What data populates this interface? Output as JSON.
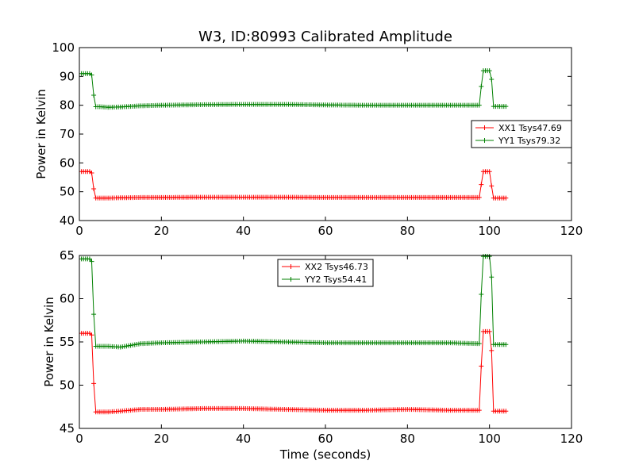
{
  "chart_data": [
    {
      "type": "line",
      "title": "W3, ID:80993 Calibrated Amplitude",
      "xlabel": "",
      "ylabel": "Power in Kelvin",
      "xlim": [
        0,
        120
      ],
      "ylim": [
        40,
        100
      ],
      "xticks": [
        0,
        20,
        40,
        60,
        80,
        100,
        120
      ],
      "yticks": [
        40,
        50,
        60,
        70,
        80,
        90,
        100
      ],
      "legend": "right",
      "series": [
        {
          "name": "XX1 Tsys47.69",
          "color": "#ff0000",
          "x": [
            0.5,
            1,
            1.5,
            2,
            2.5,
            3,
            3.5,
            4,
            5,
            7,
            10,
            15,
            20,
            30,
            40,
            50,
            60,
            70,
            80,
            90,
            97.5,
            98,
            98.5,
            99,
            99.5,
            100,
            100.5,
            101,
            102,
            103,
            104
          ],
          "y": [
            57,
            57,
            57,
            57,
            57,
            56.5,
            51,
            47.8,
            47.8,
            47.8,
            47.9,
            48,
            48,
            48.1,
            48.1,
            48.1,
            48,
            48,
            48,
            48,
            48,
            52.5,
            57,
            57,
            57,
            57,
            52,
            47.8,
            47.8,
            47.8,
            47.8
          ]
        },
        {
          "name": "YY1 Tsys79.32",
          "color": "#008000",
          "x": [
            0.5,
            1,
            1.5,
            2,
            2.5,
            3,
            3.5,
            4,
            5,
            7,
            10,
            15,
            20,
            30,
            40,
            50,
            60,
            70,
            80,
            90,
            97.5,
            98,
            98.5,
            99,
            99.5,
            100,
            100.5,
            101,
            102,
            103,
            104
          ],
          "y": [
            91,
            91,
            91,
            91,
            91,
            90.5,
            83.5,
            79.5,
            79.5,
            79.3,
            79.4,
            79.8,
            80,
            80.2,
            80.3,
            80.3,
            80.1,
            80,
            80,
            80,
            80,
            86.5,
            92,
            92,
            92,
            92,
            89,
            79.6,
            79.6,
            79.6,
            79.6
          ]
        }
      ]
    },
    {
      "type": "line",
      "title": "",
      "xlabel": "Time (seconds)",
      "ylabel": "Power in Kelvin",
      "xlim": [
        0,
        120
      ],
      "ylim": [
        45,
        65
      ],
      "xticks": [
        0,
        20,
        40,
        60,
        80,
        100,
        120
      ],
      "yticks": [
        45,
        50,
        55,
        60,
        65
      ],
      "legend": "top-center",
      "series": [
        {
          "name": "XX2 Tsys46.73",
          "color": "#ff0000",
          "x": [
            0.5,
            1,
            1.5,
            2,
            2.5,
            3,
            3.5,
            4,
            5,
            7,
            10,
            15,
            20,
            30,
            40,
            50,
            60,
            70,
            80,
            90,
            97.5,
            98,
            98.5,
            99,
            99.5,
            100,
            100.5,
            101,
            102,
            103,
            104
          ],
          "y": [
            56,
            56,
            56,
            56,
            56,
            55.8,
            50.2,
            46.9,
            46.9,
            46.9,
            47,
            47.2,
            47.2,
            47.3,
            47.3,
            47.2,
            47.1,
            47.1,
            47.2,
            47.1,
            47.1,
            52.2,
            56.2,
            56.2,
            56.2,
            56.2,
            54,
            47,
            47,
            47,
            47
          ]
        },
        {
          "name": "YY2 Tsys54.41",
          "color": "#008000",
          "x": [
            0.5,
            1,
            1.5,
            2,
            2.5,
            3,
            3.5,
            4,
            5,
            7,
            10,
            15,
            20,
            30,
            40,
            50,
            60,
            70,
            80,
            90,
            97.5,
            98,
            98.5,
            99,
            99.5,
            100,
            100.5,
            101,
            102,
            103,
            104
          ],
          "y": [
            64.6,
            64.6,
            64.6,
            64.6,
            64.6,
            64.3,
            58.2,
            54.5,
            54.5,
            54.5,
            54.4,
            54.8,
            54.9,
            55,
            55.1,
            55,
            54.9,
            54.9,
            54.9,
            54.9,
            54.8,
            60.5,
            64.9,
            64.9,
            64.9,
            64.9,
            62.5,
            54.7,
            54.7,
            54.7,
            54.7
          ]
        }
      ]
    }
  ]
}
